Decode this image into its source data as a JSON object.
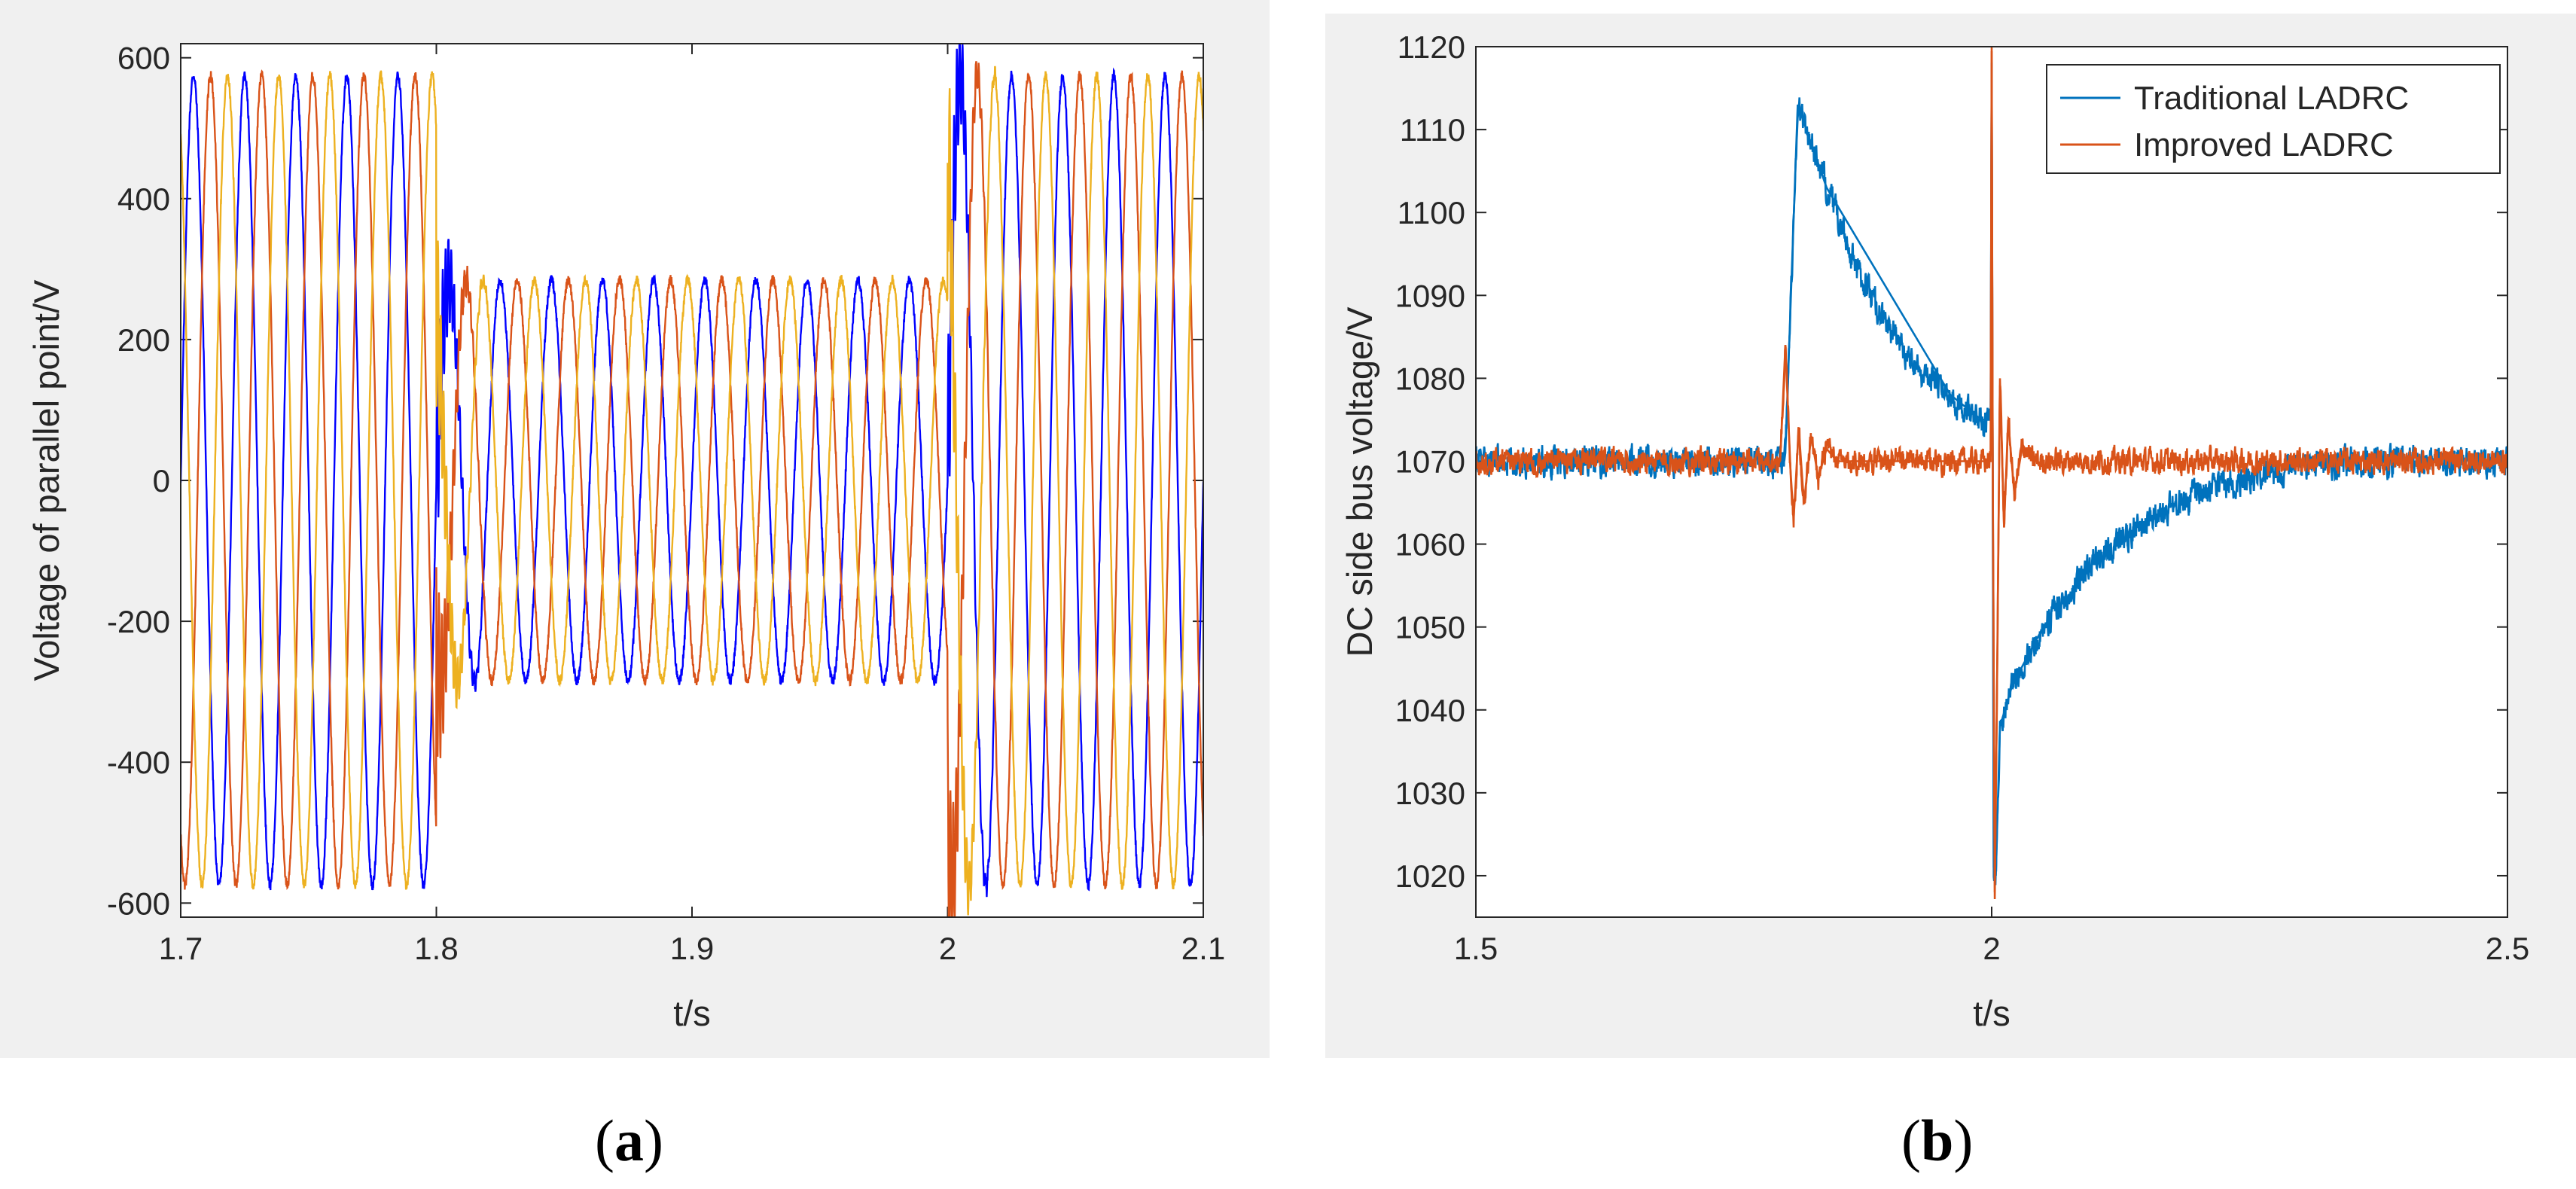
{
  "chart_data": [
    {
      "type": "line",
      "panel": "(a)",
      "caption_letter": "a",
      "xlabel": "t/s",
      "ylabel": "Voltage of parallel point/V",
      "xlim": [
        1.7,
        2.1
      ],
      "ylim": [
        -620,
        620
      ],
      "xticks": [
        "1.7",
        "1.8",
        "1.9",
        "2",
        "2.1"
      ],
      "yticks": [
        "600",
        "400",
        "200",
        "0",
        "-200",
        "-400",
        "-600"
      ],
      "grid": false,
      "legend": "none",
      "frequency_hz": 50,
      "phases": [
        {
          "color": "#0000ff",
          "phase_deg": 0
        },
        {
          "color": "#d95319",
          "phase_deg": -120
        },
        {
          "color": "#edb120",
          "phase_deg": 120
        }
      ],
      "segments": [
        {
          "t_start": 1.7,
          "t_end": 1.8,
          "amplitude": 575
        },
        {
          "t_start": 1.8,
          "t_end": 2.0,
          "amplitude": 285
        },
        {
          "t_start": 2.0,
          "t_end": 2.1,
          "amplitude": 575
        }
      ],
      "transient_peaks": [
        {
          "t": 1.805,
          "value": 340
        },
        {
          "t": 1.805,
          "value": -360
        },
        {
          "t": 2.005,
          "value": 620
        },
        {
          "t": 2.005,
          "value": -620
        }
      ]
    },
    {
      "type": "line",
      "panel": "(b)",
      "caption_letter": "b",
      "xlabel": "t/s",
      "ylabel": "DC side bus voltage/V",
      "xlim": [
        1.5,
        2.5
      ],
      "ylim": [
        1015,
        1120
      ],
      "xticks": [
        "1.5",
        "2",
        "2.5"
      ],
      "yticks": [
        "1120",
        "1110",
        "1100",
        "1090",
        "1080",
        "1070",
        "1060",
        "1050",
        "1040",
        "1030",
        "1020"
      ],
      "grid": false,
      "legend": "top-right",
      "series": [
        {
          "name": "Traditional LADRC",
          "color": "#0072bd",
          "steady_value": 1070,
          "noise": 1.4,
          "x": [
            1.5,
            1.799,
            1.8,
            1.812,
            1.84,
            1.87,
            1.9,
            1.93,
            1.96,
            1.99,
            1.999,
            2.0,
            2.002,
            2.004,
            2.008,
            2.02,
            2.05,
            2.1,
            2.15,
            2.2,
            2.25,
            2.3,
            2.4,
            2.5
          ],
          "y": [
            1070,
            1070,
            1071,
            1113,
            1103,
            1093,
            1086,
            1081,
            1078,
            1075,
            1075,
            1118,
            1021,
            1020,
            1038,
            1043,
            1050,
            1058,
            1063,
            1066,
            1068,
            1069.5,
            1070,
            1070
          ]
        },
        {
          "name": "Improved LADRC",
          "color": "#d95319",
          "steady_value": 1070,
          "noise": 1.2,
          "x": [
            1.5,
            1.795,
            1.8,
            1.805,
            1.808,
            1.813,
            1.818,
            1.825,
            1.832,
            1.84,
            1.85,
            1.999,
            2.0,
            2.001,
            2.003,
            2.005,
            2.008,
            2.012,
            2.016,
            2.022,
            2.03,
            2.04,
            2.5
          ],
          "y": [
            1070,
            1070,
            1084,
            1069,
            1063,
            1074,
            1065,
            1073,
            1068,
            1071.5,
            1070,
            1070,
            1120,
            1070,
            1018,
            1040,
            1080,
            1062,
            1075,
            1066,
            1072,
            1070,
            1070
          ]
        }
      ]
    }
  ]
}
